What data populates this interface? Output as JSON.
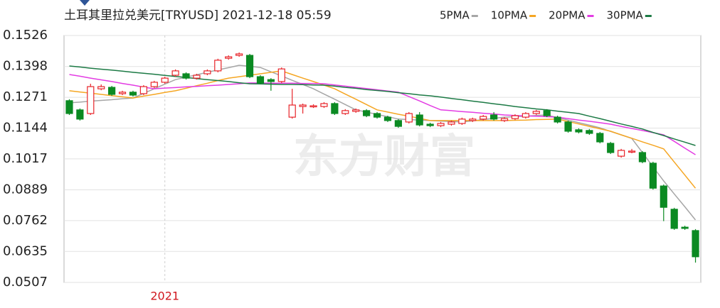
{
  "chart_data": {
    "type": "candlestick",
    "title": "土耳其里拉兑美元[TRYUSD] 2021-12-18 05:59",
    "watermark": "东方财富",
    "categories": [
      null,
      null,
      null,
      null,
      null,
      null,
      null,
      null,
      null,
      "2021",
      null,
      null,
      null,
      null,
      null,
      null,
      null,
      null,
      null,
      null,
      null,
      null,
      null,
      null,
      null,
      null,
      null,
      null,
      null,
      null,
      null,
      null,
      null,
      null,
      null,
      null,
      null,
      null,
      null,
      null,
      null,
      null,
      null,
      null,
      null,
      null,
      null,
      null,
      null,
      null,
      null,
      null,
      null,
      null,
      null,
      null,
      null,
      null,
      null,
      null
    ],
    "open": [
      0.1257,
      0.1219,
      0.1204,
      0.1306,
      0.1312,
      0.1286,
      0.1292,
      0.1286,
      0.1315,
      0.1333,
      0.1362,
      0.1368,
      0.135,
      0.1368,
      0.138,
      0.1432,
      0.1444,
      0.1444,
      0.1356,
      0.1344,
      0.1336,
      0.1189,
      0.1233,
      0.1233,
      0.1233,
      0.1245,
      0.1204,
      0.1213,
      0.1216,
      0.1204,
      0.1189,
      0.1175,
      0.1169,
      0.1198,
      0.116,
      0.1154,
      0.116,
      0.1163,
      0.1175,
      0.1181,
      0.1198,
      0.1175,
      0.1183,
      0.1189,
      0.1204,
      0.1216,
      0.1189,
      0.1169,
      0.1137,
      0.1134,
      0.1122,
      0.1081,
      0.1028,
      0.1046,
      0.1043,
      0.0999,
      0.0905,
      0.0809,
      0.0735,
      0.0721
    ],
    "high": [
      0.1263,
      0.1225,
      0.1327,
      0.1324,
      0.1318,
      0.1298,
      0.1298,
      0.1321,
      0.1339,
      0.1356,
      0.1386,
      0.1374,
      0.1368,
      0.1386,
      0.143,
      0.1444,
      0.1456,
      0.145,
      0.1362,
      0.135,
      0.1394,
      0.1306,
      0.1245,
      0.1242,
      0.1251,
      0.1251,
      0.1222,
      0.1225,
      0.1222,
      0.121,
      0.1195,
      0.1181,
      0.121,
      0.121,
      0.1166,
      0.1169,
      0.1175,
      0.1187,
      0.1187,
      0.1198,
      0.121,
      0.1189,
      0.1201,
      0.121,
      0.1219,
      0.1222,
      0.1195,
      0.1175,
      0.1143,
      0.114,
      0.1128,
      0.1087,
      0.1058,
      0.1058,
      0.1049,
      0.1005,
      0.0911,
      0.0815,
      0.0741,
      0.0727
    ],
    "low": [
      0.1198,
      0.1175,
      0.1198,
      0.13,
      0.1277,
      0.128,
      0.1274,
      0.128,
      0.1309,
      0.1327,
      0.1356,
      0.1344,
      0.1344,
      0.1362,
      0.1374,
      0.1426,
      0.1438,
      0.135,
      0.1324,
      0.1298,
      0.133,
      0.1183,
      0.1204,
      0.1227,
      0.1227,
      0.1198,
      0.1198,
      0.1207,
      0.1189,
      0.1183,
      0.1169,
      0.1145,
      0.1163,
      0.1151,
      0.1148,
      0.1148,
      0.1154,
      0.1157,
      0.1169,
      0.1175,
      0.1175,
      0.1169,
      0.1177,
      0.1183,
      0.1198,
      0.1189,
      0.1163,
      0.1125,
      0.1122,
      0.1116,
      0.1081,
      0.1037,
      0.1022,
      0.104,
      0.0999,
      0.089,
      0.076,
      0.0724,
      0.0724,
      0.0589
    ],
    "close": [
      0.1204,
      0.1181,
      0.1315,
      0.1315,
      0.1283,
      0.1292,
      0.128,
      0.1315,
      0.1333,
      0.135,
      0.138,
      0.135,
      0.1362,
      0.138,
      0.1424,
      0.1438,
      0.145,
      0.1356,
      0.133,
      0.1336,
      0.1388,
      0.1239,
      0.1239,
      0.1236,
      0.1245,
      0.1204,
      0.1216,
      0.1219,
      0.1195,
      0.1189,
      0.1175,
      0.1151,
      0.1204,
      0.1157,
      0.1154,
      0.1163,
      0.1169,
      0.1181,
      0.1181,
      0.1192,
      0.1181,
      0.1183,
      0.1195,
      0.1204,
      0.1213,
      0.1195,
      0.1169,
      0.1131,
      0.1128,
      0.1122,
      0.1087,
      0.1043,
      0.1052,
      0.1049,
      0.1005,
      0.0896,
      0.0817,
      0.073,
      0.073,
      0.0613
    ],
    "up_color": "#e8242a",
    "down_color": "#0b8a22",
    "series": [
      {
        "name": "5PMA",
        "color": "#a6a6a6",
        "values": [
          0.1248,
          0.1251,
          0.1255,
          0.1258,
          0.1261,
          0.1265,
          0.1268,
          0.1287,
          0.1306,
          0.1325,
          0.1344,
          0.1354,
          0.1364,
          0.1374,
          0.1384,
          0.1393,
          0.1403,
          0.1399,
          0.1394,
          0.1376,
          0.1359,
          0.1341,
          0.1324,
          0.1306,
          0.1284,
          0.1263,
          0.1241,
          0.1219,
          0.121,
          0.12,
          0.1191,
          0.1181,
          0.1179,
          0.1177,
          0.1175,
          0.1173,
          0.1171,
          0.1169,
          0.1174,
          0.1179,
          0.1184,
          0.1189,
          0.1191,
          0.1193,
          0.1196,
          0.1198,
          0.1187,
          0.1177,
          0.1166,
          0.1156,
          0.1145,
          0.113,
          0.1116,
          0.1101,
          0.1043,
          0.0984,
          0.0926,
          0.0872,
          0.0819,
          0.0765
        ]
      },
      {
        "name": "10PMA",
        "color": "#f5a623",
        "values": [
          0.1298,
          0.1293,
          0.1288,
          0.1283,
          0.1278,
          0.1273,
          0.1268,
          0.1276,
          0.1283,
          0.1291,
          0.1298,
          0.1308,
          0.1319,
          0.1329,
          0.134,
          0.135,
          0.1356,
          0.1362,
          0.1368,
          0.1374,
          0.138,
          0.1365,
          0.135,
          0.1336,
          0.1321,
          0.1306,
          0.1284,
          0.1263,
          0.1241,
          0.1219,
          0.121,
          0.1201,
          0.1193,
          0.1184,
          0.1175,
          0.1175,
          0.1175,
          0.1175,
          0.1175,
          0.1175,
          0.1175,
          0.1175,
          0.1176,
          0.1177,
          0.1179,
          0.118,
          0.1181,
          0.1171,
          0.1161,
          0.1151,
          0.1141,
          0.1131,
          0.1116,
          0.1102,
          0.1087,
          0.1073,
          0.1058,
          0.1004,
          0.095,
          0.0896
        ]
      },
      {
        "name": "20PMA",
        "color": "#e33ce3",
        "values": [
          0.1365,
          0.1358,
          0.135,
          0.1343,
          0.1336,
          0.1328,
          0.1321,
          0.1313,
          0.1306,
          0.1309,
          0.1311,
          0.1314,
          0.1316,
          0.1319,
          0.1321,
          0.1324,
          0.1327,
          0.133,
          0.133,
          0.1329,
          0.1329,
          0.1329,
          0.1328,
          0.1328,
          0.1327,
          0.1322,
          0.1317,
          0.1312,
          0.1307,
          0.1302,
          0.1297,
          0.1292,
          0.1274,
          0.1256,
          0.1237,
          0.1219,
          0.1216,
          0.1212,
          0.1209,
          0.1205,
          0.1202,
          0.1198,
          0.1196,
          0.1194,
          0.1193,
          0.1191,
          0.1189,
          0.1183,
          0.1177,
          0.1172,
          0.1166,
          0.116,
          0.1151,
          0.1142,
          0.1134,
          0.1125,
          0.1116,
          0.1089,
          0.1061,
          0.1034
        ]
      },
      {
        "name": "30PMA",
        "color": "#1c7a45",
        "values": [
          0.14,
          0.1396,
          0.1391,
          0.1387,
          0.1383,
          0.1379,
          0.1374,
          0.137,
          0.1366,
          0.1361,
          0.1357,
          0.1353,
          0.1348,
          0.1344,
          0.134,
          0.1336,
          0.1331,
          0.1327,
          0.1326,
          0.1325,
          0.1324,
          0.1324,
          0.1323,
          0.1322,
          0.1321,
          0.1317,
          0.1312,
          0.1308,
          0.1303,
          0.1299,
          0.1295,
          0.129,
          0.1286,
          0.1281,
          0.1277,
          0.1272,
          0.1266,
          0.1261,
          0.1255,
          0.125,
          0.1244,
          0.1239,
          0.1233,
          0.1228,
          0.1223,
          0.1219,
          0.1214,
          0.1209,
          0.1204,
          0.1193,
          0.1183,
          0.1172,
          0.1161,
          0.1151,
          0.114,
          0.1126,
          0.1113,
          0.1099,
          0.1086,
          0.1072
        ]
      }
    ],
    "ylim": [
      0.0507,
      0.1526
    ],
    "yticks": [
      0.0507,
      0.0635,
      0.0762,
      0.0889,
      0.1017,
      0.1144,
      0.1271,
      0.1398,
      0.1526
    ],
    "grid": true
  }
}
